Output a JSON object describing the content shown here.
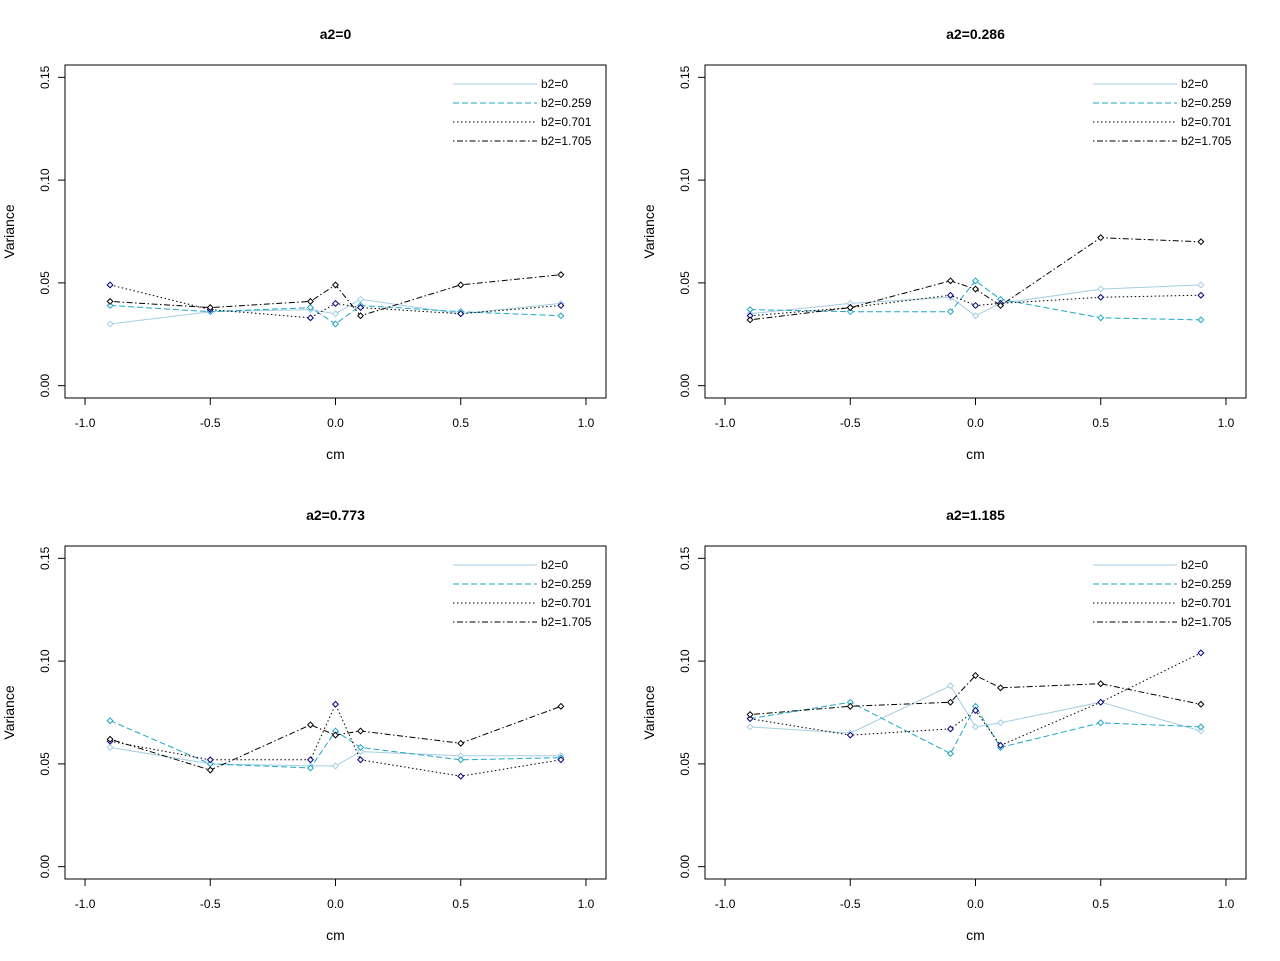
{
  "chart_data": [
    {
      "type": "line",
      "title": "a2=0",
      "xlabel": "cm",
      "ylabel": "Variance",
      "xlim": [
        -1.0,
        1.0
      ],
      "ylim": [
        0.0,
        0.15
      ],
      "xticks": [
        "-1.0",
        "-0.5",
        "0.0",
        "0.5",
        "1.0"
      ],
      "yticks": [
        "0.00",
        "0.05",
        "0.10",
        "0.15"
      ],
      "x": [
        -0.9,
        -0.5,
        -0.1,
        0.0,
        0.1,
        0.5,
        0.9
      ],
      "legend_position": "top-right",
      "series": [
        {
          "name": "b2=0",
          "values": [
            0.03,
            0.036,
            0.037,
            0.035,
            0.042,
            0.035,
            0.04
          ]
        },
        {
          "name": "b2=0.259",
          "values": [
            0.039,
            0.036,
            0.038,
            0.03,
            0.039,
            0.036,
            0.034
          ]
        },
        {
          "name": "b2=0.701",
          "values": [
            0.049,
            0.037,
            0.033,
            0.04,
            0.038,
            0.035,
            0.039
          ]
        },
        {
          "name": "b2=1.705",
          "values": [
            0.041,
            0.038,
            0.041,
            0.049,
            0.034,
            0.049,
            0.054
          ]
        }
      ]
    },
    {
      "type": "line",
      "title": "a2=0.286",
      "xlabel": "cm",
      "ylabel": "Variance",
      "xlim": [
        -1.0,
        1.0
      ],
      "ylim": [
        0.0,
        0.15
      ],
      "xticks": [
        "-1.0",
        "-0.5",
        "0.0",
        "0.5",
        "1.0"
      ],
      "yticks": [
        "0.00",
        "0.05",
        "0.10",
        "0.15"
      ],
      "x": [
        -0.9,
        -0.5,
        -0.1,
        0.0,
        0.1,
        0.5,
        0.9
      ],
      "legend_position": "top-right",
      "series": [
        {
          "name": "b2=0",
          "values": [
            0.035,
            0.04,
            0.043,
            0.034,
            0.04,
            0.047,
            0.049
          ]
        },
        {
          "name": "b2=0.259",
          "values": [
            0.037,
            0.036,
            0.036,
            0.051,
            0.042,
            0.033,
            0.032
          ]
        },
        {
          "name": "b2=0.701",
          "values": [
            0.034,
            0.038,
            0.044,
            0.039,
            0.04,
            0.043,
            0.044
          ]
        },
        {
          "name": "b2=1.705",
          "values": [
            0.032,
            0.038,
            0.051,
            0.047,
            0.039,
            0.072,
            0.07
          ]
        }
      ]
    },
    {
      "type": "line",
      "title": "a2=0.773",
      "xlabel": "cm",
      "ylabel": "Variance",
      "xlim": [
        -1.0,
        1.0
      ],
      "ylim": [
        0.0,
        0.15
      ],
      "xticks": [
        "-1.0",
        "-0.5",
        "0.0",
        "0.5",
        "1.0"
      ],
      "yticks": [
        "0.00",
        "0.05",
        "0.10",
        "0.15"
      ],
      "x": [
        -0.9,
        -0.5,
        -0.1,
        0.0,
        0.1,
        0.5,
        0.9
      ],
      "legend_position": "top-right",
      "series": [
        {
          "name": "b2=0",
          "values": [
            0.058,
            0.05,
            0.049,
            0.049,
            0.056,
            0.054,
            0.054
          ]
        },
        {
          "name": "b2=0.259",
          "values": [
            0.071,
            0.05,
            0.048,
            0.066,
            0.058,
            0.052,
            0.053
          ]
        },
        {
          "name": "b2=0.701",
          "values": [
            0.061,
            0.052,
            0.052,
            0.079,
            0.052,
            0.044,
            0.052
          ]
        },
        {
          "name": "b2=1.705",
          "values": [
            0.062,
            0.047,
            0.069,
            0.064,
            0.066,
            0.06,
            0.078
          ]
        }
      ]
    },
    {
      "type": "line",
      "title": "a2=1.185",
      "xlabel": "cm",
      "ylabel": "Variance",
      "xlim": [
        -1.0,
        1.0
      ],
      "ylim": [
        0.0,
        0.15
      ],
      "xticks": [
        "-1.0",
        "-0.5",
        "0.0",
        "0.5",
        "1.0"
      ],
      "yticks": [
        "0.00",
        "0.05",
        "0.10",
        "0.15"
      ],
      "x": [
        -0.9,
        -0.5,
        -0.1,
        0.0,
        0.1,
        0.5,
        0.9
      ],
      "legend_position": "top-right",
      "series": [
        {
          "name": "b2=0",
          "values": [
            0.068,
            0.065,
            0.088,
            0.068,
            0.07,
            0.08,
            0.066
          ]
        },
        {
          "name": "b2=0.259",
          "values": [
            0.072,
            0.08,
            0.055,
            0.078,
            0.058,
            0.07,
            0.068
          ]
        },
        {
          "name": "b2=0.701",
          "values": [
            0.072,
            0.064,
            0.067,
            0.076,
            0.059,
            0.08,
            0.104
          ]
        },
        {
          "name": "b2=1.705",
          "values": [
            0.074,
            0.078,
            0.08,
            0.093,
            0.087,
            0.089,
            0.079
          ]
        }
      ]
    }
  ],
  "styles": {
    "series_colors": [
      "#a6cee3",
      "#1fa6c4",
      "#000000",
      "#000000"
    ],
    "series_dash": [
      "solid",
      "dashed",
      "dotted",
      "dotdash"
    ],
    "point_colors": [
      "#a6cee3",
      "#1fa6c4",
      "#000080",
      "#000000"
    ]
  }
}
